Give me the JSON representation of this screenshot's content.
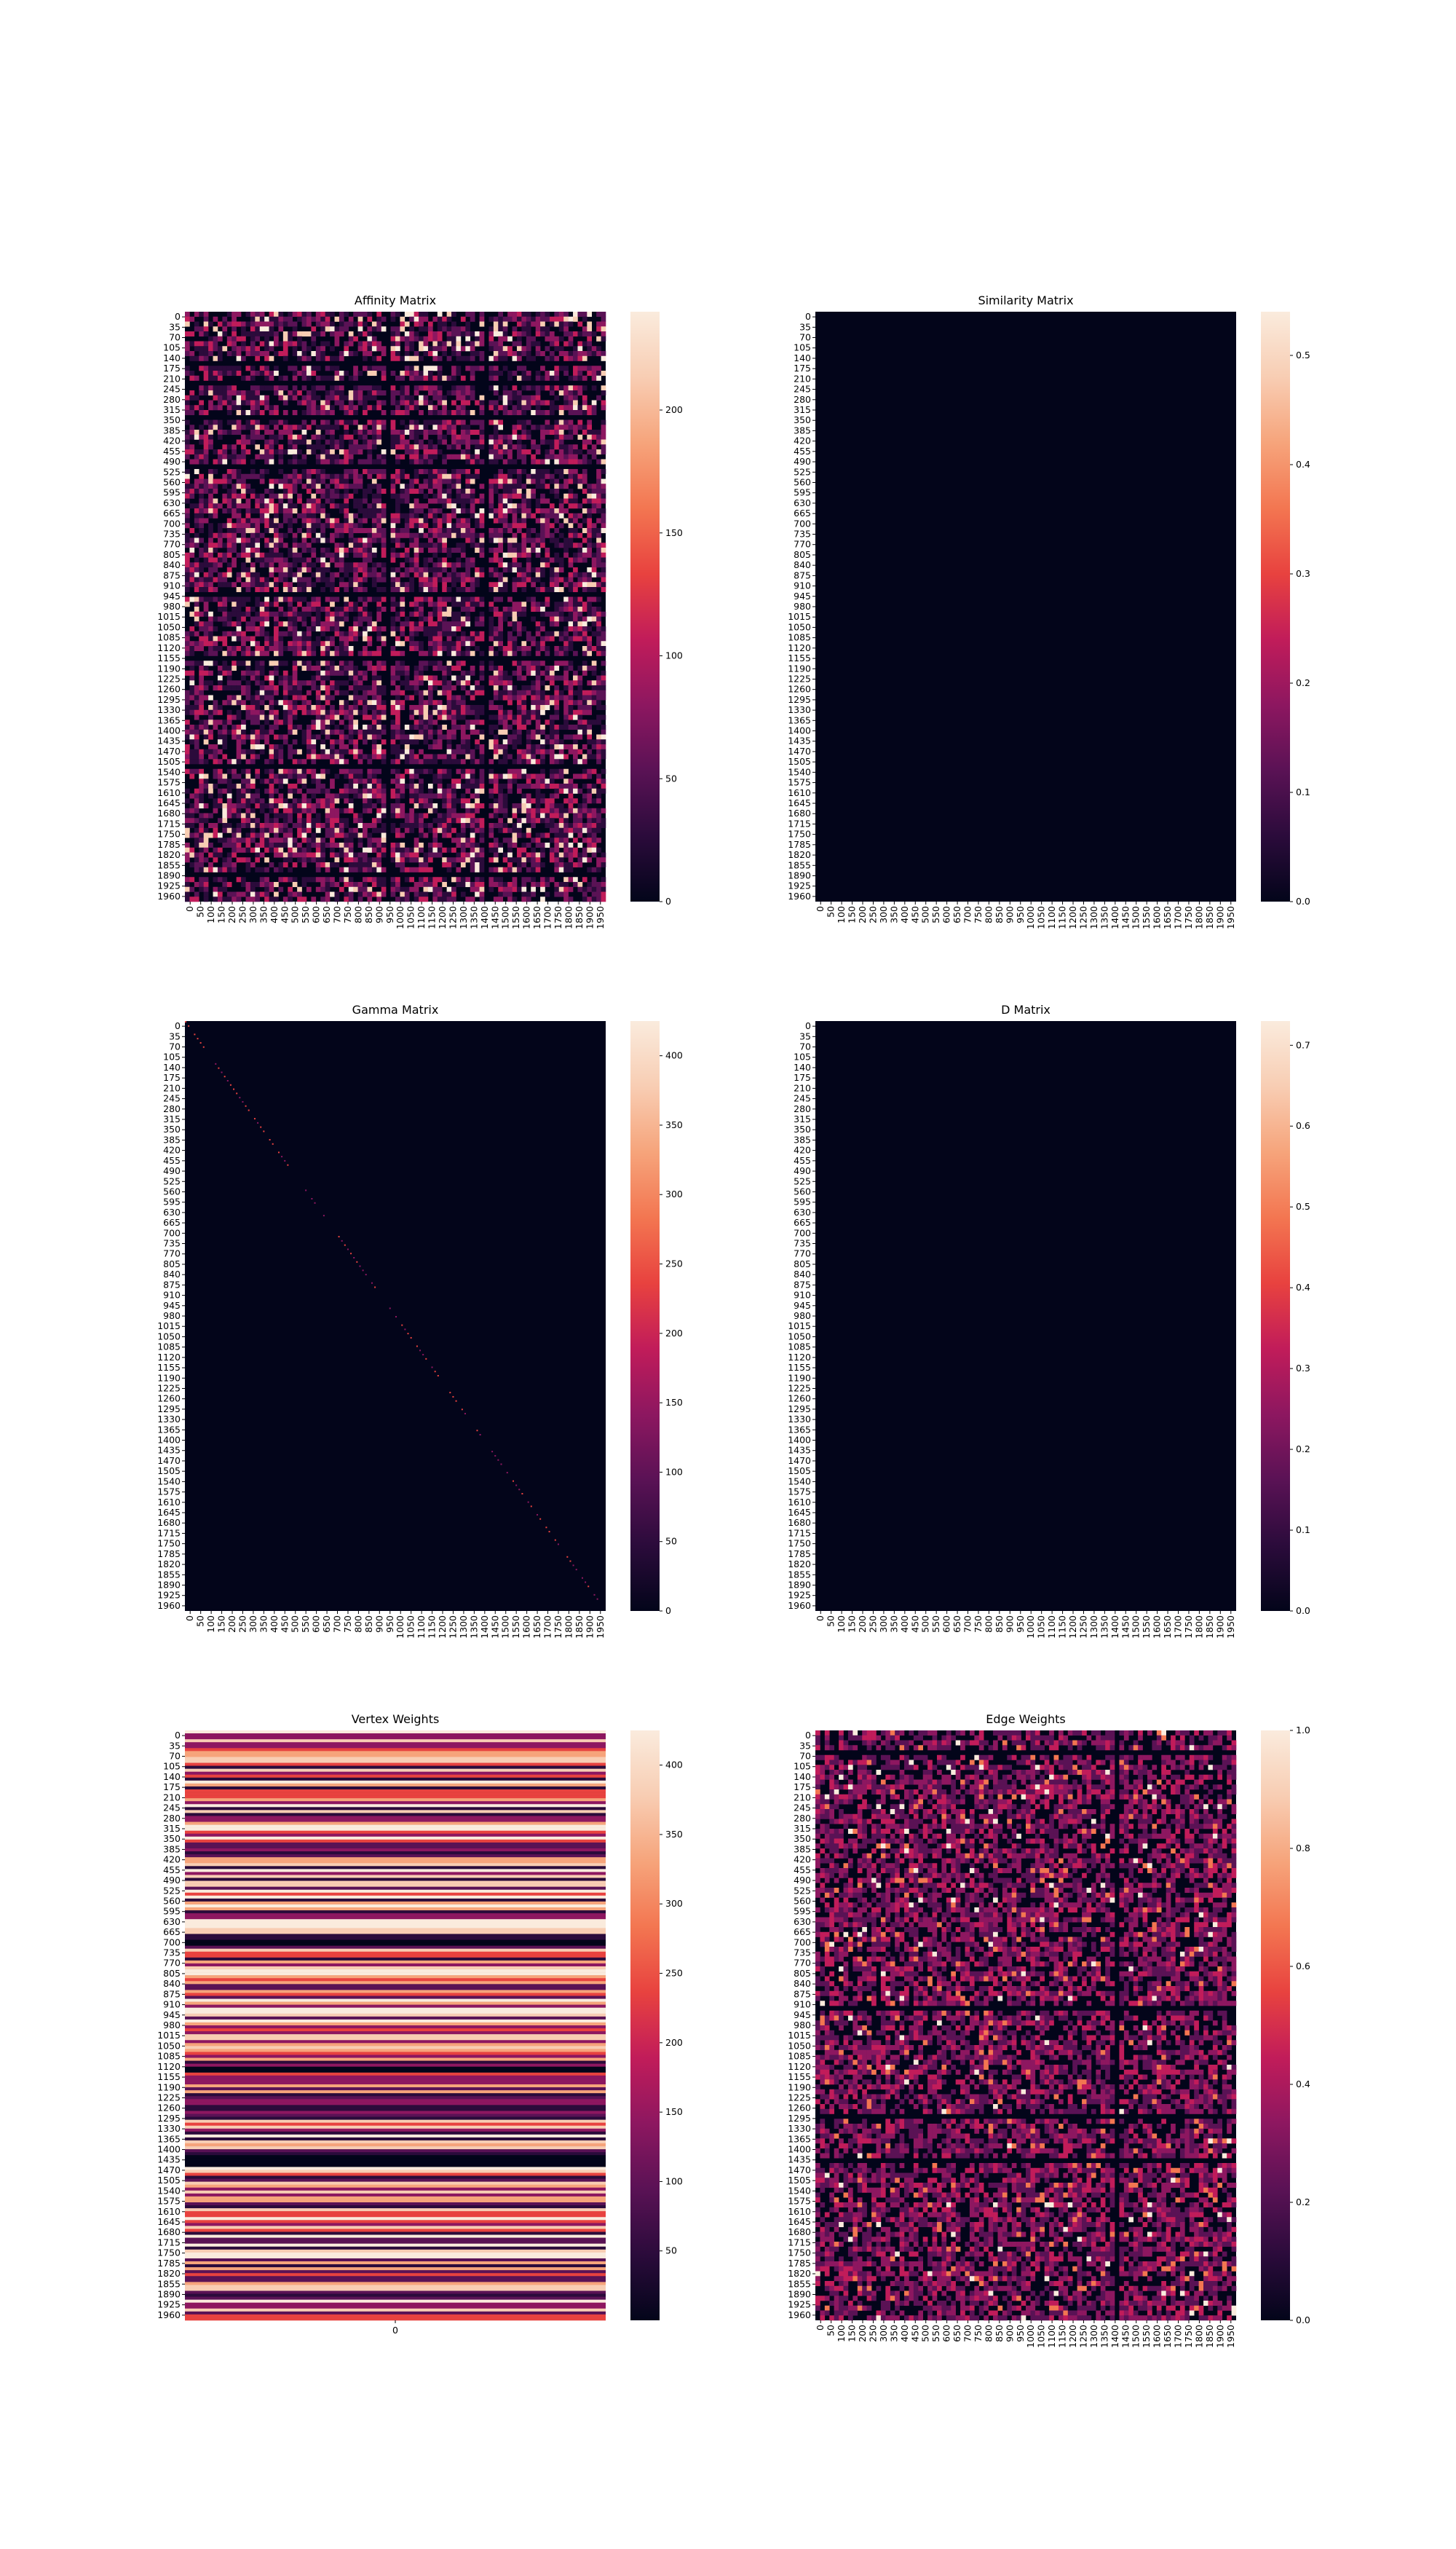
{
  "chart_data": [
    {
      "type": "heatmap",
      "title": "Affinity Matrix",
      "pattern": "dense-noise",
      "y_ticks": [
        "0",
        "35",
        "70",
        "105",
        "140",
        "175",
        "210",
        "245",
        "280",
        "315",
        "350",
        "385",
        "420",
        "455",
        "490",
        "525",
        "560",
        "595",
        "630",
        "665",
        "700",
        "735",
        "770",
        "805",
        "840",
        "875",
        "910",
        "945",
        "980",
        "1015",
        "1050",
        "1085",
        "1120",
        "1155",
        "1190",
        "1225",
        "1260",
        "1295",
        "1330",
        "1365",
        "1400",
        "1435",
        "1470",
        "1505",
        "1540",
        "1575",
        "1610",
        "1645",
        "1680",
        "1715",
        "1750",
        "1785",
        "1820",
        "1855",
        "1890",
        "1925",
        "1960"
      ],
      "x_ticks": [
        "0",
        "50",
        "100",
        "150",
        "200",
        "250",
        "300",
        "350",
        "400",
        "450",
        "500",
        "550",
        "600",
        "650",
        "700",
        "750",
        "800",
        "850",
        "900",
        "950",
        "1000",
        "1050",
        "1100",
        "1150",
        "1200",
        "1250",
        "1300",
        "1350",
        "1400",
        "1450",
        "1500",
        "1550",
        "1600",
        "1650",
        "1700",
        "1750",
        "1800",
        "1850",
        "1900",
        "1950"
      ],
      "colorbar": {
        "min": 0,
        "max": 240,
        "ticks": [
          "0",
          "50",
          "100",
          "150",
          "200"
        ],
        "tick_values": [
          0,
          50,
          100,
          150,
          200
        ]
      },
      "dark_rows": [
        0.09,
        0.12,
        0.175,
        0.26,
        0.48,
        0.585,
        0.77,
        0.95
      ],
      "dark_cols": [
        0.48,
        0.72
      ]
    },
    {
      "type": "heatmap",
      "title": "Similarity Matrix",
      "pattern": "near-zero",
      "y_ticks": [
        "0",
        "35",
        "70",
        "105",
        "140",
        "175",
        "210",
        "245",
        "280",
        "315",
        "350",
        "385",
        "420",
        "455",
        "490",
        "525",
        "560",
        "595",
        "630",
        "665",
        "700",
        "735",
        "770",
        "805",
        "840",
        "875",
        "910",
        "945",
        "980",
        "1015",
        "1050",
        "1085",
        "1120",
        "1155",
        "1190",
        "1225",
        "1260",
        "1295",
        "1330",
        "1365",
        "1400",
        "1435",
        "1470",
        "1505",
        "1540",
        "1575",
        "1610",
        "1645",
        "1680",
        "1715",
        "1750",
        "1785",
        "1820",
        "1855",
        "1890",
        "1925",
        "1960"
      ],
      "x_ticks": [
        "0",
        "50",
        "100",
        "150",
        "200",
        "250",
        "300",
        "350",
        "400",
        "450",
        "500",
        "550",
        "600",
        "650",
        "700",
        "750",
        "800",
        "850",
        "900",
        "950",
        "1000",
        "1050",
        "1100",
        "1150",
        "1200",
        "1250",
        "1300",
        "1350",
        "1400",
        "1450",
        "1500",
        "1550",
        "1600",
        "1650",
        "1700",
        "1750",
        "1800",
        "1850",
        "1900",
        "1950"
      ],
      "colorbar": {
        "min": 0.0,
        "max": 0.54,
        "ticks": [
          "0.0",
          "0.1",
          "0.2",
          "0.3",
          "0.4",
          "0.5"
        ],
        "tick_values": [
          0.0,
          0.1,
          0.2,
          0.3,
          0.4,
          0.5
        ]
      }
    },
    {
      "type": "heatmap",
      "title": "Gamma Matrix",
      "pattern": "diagonal",
      "y_ticks": [
        "0",
        "35",
        "70",
        "105",
        "140",
        "175",
        "210",
        "245",
        "280",
        "315",
        "350",
        "385",
        "420",
        "455",
        "490",
        "525",
        "560",
        "595",
        "630",
        "665",
        "700",
        "735",
        "770",
        "805",
        "840",
        "875",
        "910",
        "945",
        "980",
        "1015",
        "1050",
        "1085",
        "1120",
        "1155",
        "1190",
        "1225",
        "1260",
        "1295",
        "1330",
        "1365",
        "1400",
        "1435",
        "1470",
        "1505",
        "1540",
        "1575",
        "1610",
        "1645",
        "1680",
        "1715",
        "1750",
        "1785",
        "1820",
        "1855",
        "1890",
        "1925",
        "1960"
      ],
      "x_ticks": [
        "0",
        "50",
        "100",
        "150",
        "200",
        "250",
        "300",
        "350",
        "400",
        "450",
        "500",
        "550",
        "600",
        "650",
        "700",
        "750",
        "800",
        "850",
        "900",
        "950",
        "1000",
        "1050",
        "1100",
        "1150",
        "1200",
        "1250",
        "1300",
        "1350",
        "1400",
        "1450",
        "1500",
        "1550",
        "1600",
        "1650",
        "1700",
        "1750",
        "1800",
        "1850",
        "1900",
        "1950"
      ],
      "colorbar": {
        "min": 0,
        "max": 425,
        "ticks": [
          "0",
          "50",
          "100",
          "150",
          "200",
          "250",
          "300",
          "350",
          "400"
        ],
        "tick_values": [
          0,
          50,
          100,
          150,
          200,
          250,
          300,
          350,
          400
        ]
      }
    },
    {
      "type": "heatmap",
      "title": "D Matrix",
      "pattern": "near-zero",
      "y_ticks": [
        "0",
        "35",
        "70",
        "105",
        "140",
        "175",
        "210",
        "245",
        "280",
        "315",
        "350",
        "385",
        "420",
        "455",
        "490",
        "525",
        "560",
        "595",
        "630",
        "665",
        "700",
        "735",
        "770",
        "805",
        "840",
        "875",
        "910",
        "945",
        "980",
        "1015",
        "1050",
        "1085",
        "1120",
        "1155",
        "1190",
        "1225",
        "1260",
        "1295",
        "1330",
        "1365",
        "1400",
        "1435",
        "1470",
        "1505",
        "1540",
        "1575",
        "1610",
        "1645",
        "1680",
        "1715",
        "1750",
        "1785",
        "1820",
        "1855",
        "1890",
        "1925",
        "1960"
      ],
      "x_ticks": [
        "0",
        "50",
        "100",
        "150",
        "200",
        "250",
        "300",
        "350",
        "400",
        "450",
        "500",
        "550",
        "600",
        "650",
        "700",
        "750",
        "800",
        "850",
        "900",
        "950",
        "1000",
        "1050",
        "1100",
        "1150",
        "1200",
        "1250",
        "1300",
        "1350",
        "1400",
        "1450",
        "1500",
        "1550",
        "1600",
        "1650",
        "1700",
        "1750",
        "1800",
        "1850",
        "1900",
        "1950"
      ],
      "colorbar": {
        "min": 0.0,
        "max": 0.73,
        "ticks": [
          "0.0",
          "0.1",
          "0.2",
          "0.3",
          "0.4",
          "0.5",
          "0.6",
          "0.7"
        ],
        "tick_values": [
          0.0,
          0.1,
          0.2,
          0.3,
          0.4,
          0.5,
          0.6,
          0.7
        ]
      }
    },
    {
      "type": "heatmap",
      "title": "Vertex Weights",
      "pattern": "stripes",
      "y_ticks": [
        "0",
        "35",
        "70",
        "105",
        "140",
        "175",
        "210",
        "245",
        "280",
        "315",
        "350",
        "385",
        "420",
        "455",
        "490",
        "525",
        "560",
        "595",
        "630",
        "665",
        "700",
        "735",
        "770",
        "805",
        "840",
        "875",
        "910",
        "945",
        "980",
        "1015",
        "1050",
        "1085",
        "1120",
        "1155",
        "1190",
        "1225",
        "1260",
        "1295",
        "1330",
        "1365",
        "1400",
        "1435",
        "1470",
        "1505",
        "1540",
        "1575",
        "1610",
        "1645",
        "1680",
        "1715",
        "1750",
        "1785",
        "1820",
        "1855",
        "1890",
        "1925",
        "1960"
      ],
      "x_ticks": [
        "0"
      ],
      "colorbar": {
        "min": 0,
        "max": 425,
        "ticks": [
          "50",
          "100",
          "150",
          "200",
          "250",
          "300",
          "350",
          "400"
        ],
        "tick_values": [
          50,
          100,
          150,
          200,
          250,
          300,
          350,
          400
        ]
      },
      "dark_bands": [
        0.72,
        0.73,
        0.355,
        0.575
      ]
    },
    {
      "type": "heatmap",
      "title": "Edge Weights",
      "pattern": "dense-noise-red",
      "y_ticks": [
        "0",
        "35",
        "70",
        "105",
        "140",
        "175",
        "210",
        "245",
        "280",
        "315",
        "350",
        "385",
        "420",
        "455",
        "490",
        "525",
        "560",
        "595",
        "630",
        "665",
        "700",
        "735",
        "770",
        "805",
        "840",
        "875",
        "910",
        "945",
        "980",
        "1015",
        "1050",
        "1085",
        "1120",
        "1155",
        "1190",
        "1225",
        "1260",
        "1295",
        "1330",
        "1365",
        "1400",
        "1435",
        "1470",
        "1505",
        "1540",
        "1575",
        "1610",
        "1645",
        "1680",
        "1715",
        "1750",
        "1785",
        "1820",
        "1855",
        "1890",
        "1925",
        "1960"
      ],
      "x_ticks": [
        "0",
        "50",
        "100",
        "150",
        "200",
        "250",
        "300",
        "350",
        "400",
        "450",
        "500",
        "550",
        "600",
        "650",
        "700",
        "750",
        "800",
        "850",
        "900",
        "950",
        "1000",
        "1050",
        "1100",
        "1150",
        "1200",
        "1250",
        "1300",
        "1350",
        "1400",
        "1450",
        "1500",
        "1550",
        "1600",
        "1650",
        "1700",
        "1750",
        "1800",
        "1850",
        "1900",
        "1950"
      ],
      "colorbar": {
        "min": 0.0,
        "max": 1.0,
        "ticks": [
          "0.0",
          "0.2",
          "0.4",
          "0.6",
          "0.8",
          "1.0"
        ],
        "tick_values": [
          0.0,
          0.2,
          0.4,
          0.6,
          0.8,
          1.0
        ]
      },
      "dark_rows": [
        0.035,
        0.47,
        0.655,
        0.73
      ],
      "dark_cols": [
        0.72
      ]
    }
  ]
}
